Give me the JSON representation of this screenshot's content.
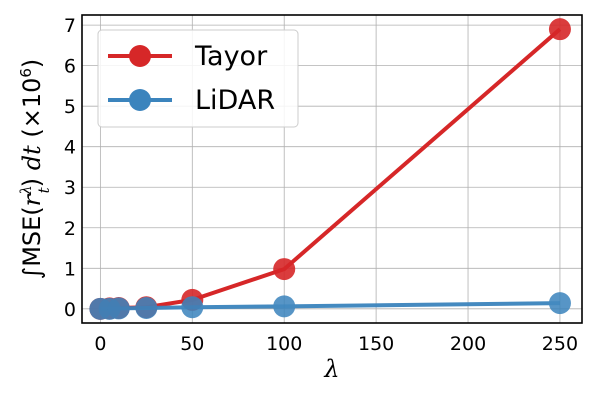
{
  "chart_data": {
    "type": "line",
    "xlabel": "λ",
    "ylabel_parts": {
      "prefix": "∫MSE(",
      "var": "r",
      "sup": "λ",
      "sub": "t",
      "suffix1": ") ",
      "dt": "dt",
      "suffix2": " (×10",
      "exp": "6",
      "end": ")"
    },
    "xlim": [
      -10,
      262
    ],
    "ylim": [
      -0.35,
      7.25
    ],
    "xticks": [
      0,
      50,
      100,
      150,
      200,
      250
    ],
    "yticks": [
      0,
      1,
      2,
      3,
      4,
      5,
      6,
      7
    ],
    "grid": true,
    "legend_position": "top-left",
    "series": [
      {
        "name": "Tayor",
        "color": "#d62728",
        "x": [
          0,
          5,
          10,
          25,
          50,
          100,
          250
        ],
        "y": [
          0.0,
          0.01,
          0.02,
          0.04,
          0.22,
          0.98,
          6.9
        ]
      },
      {
        "name": "LiDAR",
        "color": "#3b84bd",
        "x": [
          0,
          5,
          10,
          25,
          50,
          100,
          250
        ],
        "y": [
          0.0,
          0.0,
          0.01,
          0.02,
          0.04,
          0.06,
          0.14
        ]
      }
    ]
  }
}
